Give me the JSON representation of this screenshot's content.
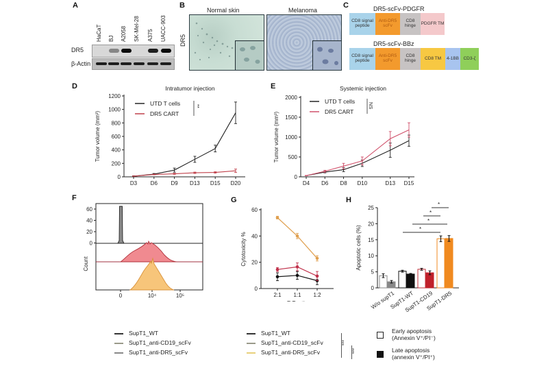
{
  "panels": {
    "A": {
      "letter": "A",
      "lanes": [
        "HaCaT",
        "BJ",
        "A2058",
        "SK-Mel-28",
        "A375",
        "UACC-903"
      ],
      "rows": [
        "DR5",
        "β-Actin"
      ],
      "dr5_band_intensity": [
        0,
        0.35,
        1,
        0,
        0.9,
        1
      ],
      "actin_band_intensity": [
        1,
        1,
        1,
        1,
        0.95,
        1
      ]
    },
    "B": {
      "letter": "B",
      "row_label": "DR5",
      "images": [
        "Normal skin",
        "Melanoma"
      ]
    },
    "C": {
      "letter": "C",
      "constructs": [
        {
          "title": "DR5-scFv-PDGFR",
          "segments": [
            {
              "label": "CD8 signal peptide",
              "color": "#a9d3ea"
            },
            {
              "label": "Anti-DR5 scFv",
              "color": "#f39a2d"
            },
            {
              "label": "CD8 hinge",
              "color": "#c7c3c3"
            },
            {
              "label": "PDGFR TM",
              "color": "#f4c9cb"
            }
          ]
        },
        {
          "title": "DR5-scFv-BBz",
          "segments": [
            {
              "label": "CD8 signal peptide",
              "color": "#a9d3ea"
            },
            {
              "label": "Anti-DR5 scFv",
              "color": "#f39a2d"
            },
            {
              "label": "CD8 hinge",
              "color": "#c7c3c3"
            },
            {
              "label": "CD8 TM",
              "color": "#f7c842"
            },
            {
              "label": "4-1BB",
              "color": "#a8c4ef"
            },
            {
              "label": "CD3-ζ",
              "color": "#8fcf5a"
            }
          ]
        }
      ]
    },
    "F": {
      "letter": "F",
      "ylabel": "Count",
      "xlabel": "Anti_Fab (scFv)",
      "yticks": [
        "60",
        "40",
        "20",
        "0"
      ],
      "xticks": [
        "0",
        "10⁴",
        "10⁵"
      ],
      "legend": [
        {
          "label": "SupT1_WT",
          "color": "#333333"
        },
        {
          "label": "SupT1_anti-CD19_scFv",
          "color": "#9a9a8a"
        },
        {
          "label": "SupT1_anti-DR5_scFv",
          "color": "#888888"
        }
      ],
      "tracks": [
        {
          "name": "SupT1_WT",
          "fill": "#8c8c8c",
          "stroke": "#222222"
        },
        {
          "name": "SupT1_anti-CD19_scFv",
          "fill": "#f08a90",
          "stroke": "#b0303a"
        },
        {
          "name": "SupT1_anti-DR5_scFv",
          "fill": "#f7c57a",
          "stroke": "#d9923a"
        }
      ]
    },
    "G_legend": {
      "items": [
        {
          "label": "SupT1_WT",
          "color": "#333333"
        },
        {
          "label": "SupT1_anti-CD19_scFv",
          "color": "#9a9a8a"
        },
        {
          "label": "SupT1_anti-DR5_scFv",
          "color": "#e8d07a"
        }
      ],
      "sig1": "***",
      "sig2": "***"
    },
    "H_legend": {
      "items": [
        {
          "label_line1": "Early apoptosis",
          "label_line2": "(Annexin V⁺/PI⁻)",
          "swatch": "open"
        },
        {
          "label_line1": "Late apoptosis",
          "label_line2": "(annexin V⁺/PI⁺)",
          "swatch": "filled"
        }
      ]
    }
  },
  "chart_data": [
    {
      "id": "D",
      "letter": "D",
      "type": "line",
      "title": "Intratumor injection",
      "xlabel": "",
      "ylabel": "Tumor volume (mm³)",
      "categories": [
        "D3",
        "D6",
        "D9",
        "D13",
        "D15",
        "D20"
      ],
      "ylim": [
        0,
        1200
      ],
      "yticks": [
        0,
        200,
        400,
        600,
        800,
        1000,
        1200
      ],
      "series": [
        {
          "name": "UTD T cells",
          "color": "#222222",
          "values": [
            10,
            40,
            100,
            260,
            420,
            950
          ],
          "errors": [
            5,
            10,
            30,
            45,
            50,
            160
          ]
        },
        {
          "name": "DR5 CART",
          "color": "#c0404a",
          "values": [
            10,
            35,
            45,
            60,
            65,
            90
          ],
          "errors": [
            3,
            5,
            8,
            10,
            10,
            25
          ]
        }
      ],
      "significance": "**",
      "legend_position": "top-left"
    },
    {
      "id": "E",
      "letter": "E",
      "type": "line",
      "title": "Systemic injection",
      "xlabel": "",
      "ylabel": "Tumor volume (mm³)",
      "categories": [
        "D4",
        "D6",
        "D8",
        "D10",
        "D13",
        "D15"
      ],
      "x_positions": [
        4,
        6,
        8,
        10,
        13,
        15
      ],
      "ylim": [
        0,
        2000
      ],
      "yticks": [
        0,
        500,
        1000,
        1500,
        2000
      ],
      "series": [
        {
          "name": "UTD T cells",
          "color": "#222222",
          "values": [
            30,
            120,
            180,
            340,
            670,
            910
          ],
          "errors": [
            5,
            20,
            50,
            80,
            180,
            140
          ]
        },
        {
          "name": "DR5 CART",
          "color": "#d0506a",
          "values": [
            30,
            140,
            270,
            400,
            960,
            1180
          ],
          "errors": [
            5,
            25,
            70,
            100,
            180,
            180
          ]
        }
      ],
      "significance": "NS",
      "legend_position": "top-left"
    },
    {
      "id": "G",
      "letter": "G",
      "type": "line",
      "title": "",
      "xlabel": "E:T ratio",
      "ylabel": "Cytotoxicity %",
      "categories": [
        "2:1",
        "1:1",
        "1:2"
      ],
      "ylim": [
        0,
        60
      ],
      "yticks": [
        0,
        20,
        40,
        60
      ],
      "series": [
        {
          "name": "SupT1_WT",
          "color": "#111111",
          "values": [
            9,
            10,
            6
          ],
          "errors": [
            3,
            3,
            3
          ]
        },
        {
          "name": "SupT1_anti-CD19_scFv",
          "color": "#c0304a",
          "values": [
            14.5,
            16.5,
            9.5
          ],
          "errors": [
            1.5,
            3,
            3.5
          ]
        },
        {
          "name": "SupT1_anti-DR5_scFv",
          "color": "#e0a050",
          "values": [
            54,
            40,
            23
          ],
          "errors": [
            1,
            2,
            2
          ]
        }
      ]
    },
    {
      "id": "H",
      "letter": "H",
      "type": "bar",
      "title": "",
      "xlabel": "",
      "ylabel": "Apoptotic cells (%)",
      "categories": [
        "W/o supT1",
        "SupT1-WT",
        "SupT1-CD19",
        "SupT1-DR5"
      ],
      "ylim": [
        0,
        25
      ],
      "yticks": [
        0,
        5,
        10,
        15,
        20,
        25
      ],
      "series": [
        {
          "name": "Early apoptosis (Annexin V⁺/PI⁻)",
          "values": [
            3.8,
            5.2,
            5.8,
            15.3
          ],
          "errors": [
            0.6,
            0.3,
            0.3,
            0.9
          ],
          "colors": [
            "#ffffff",
            "#ffffff",
            "#ffffff",
            "#ffffff"
          ],
          "strokes": [
            "#888888",
            "#111111",
            "#c0303a",
            "#f08a20"
          ]
        },
        {
          "name": "Late apoptosis (annexin V⁺/PI⁺)",
          "values": [
            1.9,
            4.3,
            4.7,
            15.4
          ],
          "errors": [
            0.4,
            0.2,
            0.6,
            0.9
          ],
          "colors": [
            "#888888",
            "#111111",
            "#c0202a",
            "#f08a20"
          ],
          "strokes": [
            "#888888",
            "#111111",
            "#c0202a",
            "#f08a20"
          ]
        }
      ],
      "significance_brackets": [
        {
          "from": "SupT1-WT",
          "to": "SupT1-DR5",
          "label": "*"
        },
        {
          "from": "SupT1-CD19",
          "to": "SupT1-DR5",
          "label": "*"
        },
        {
          "from": "SupT1-CD19",
          "to": "SupT1-DR5",
          "label": "*"
        },
        {
          "from": "SupT1-DR5",
          "to": "SupT1-DR5",
          "label": "*"
        }
      ]
    }
  ]
}
